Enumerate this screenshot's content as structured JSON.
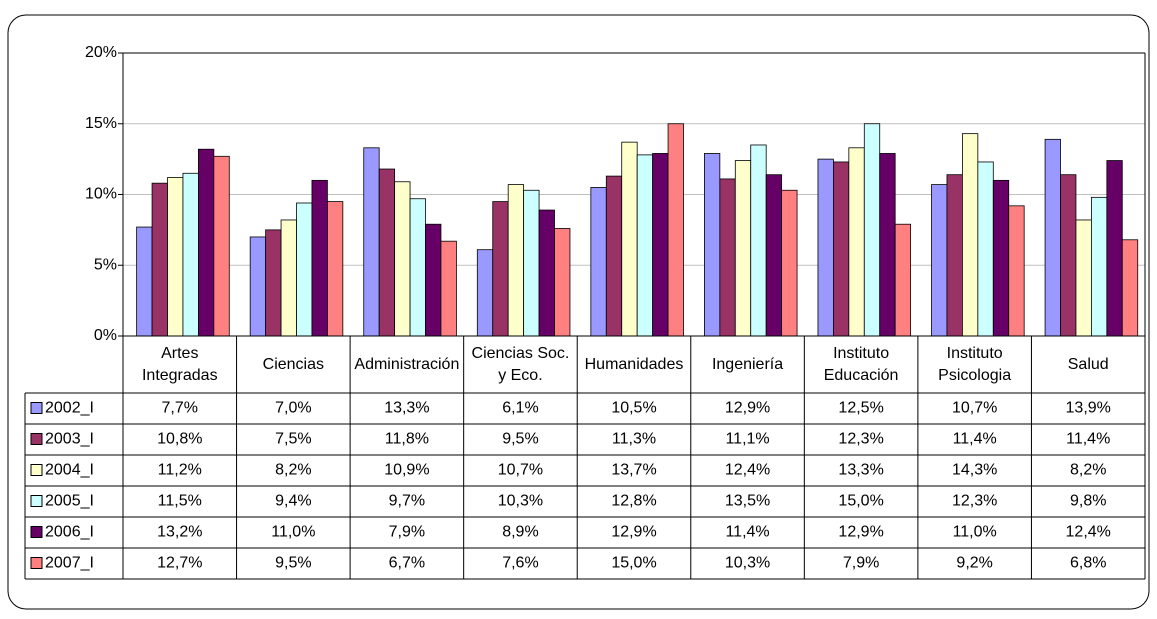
{
  "chart_data": {
    "type": "bar",
    "categories": [
      "Artes Integradas",
      "Ciencias",
      "Administración",
      "Ciencias Soc. y Eco.",
      "Humanidades",
      "Ingeniería",
      "Instituto Educación",
      "Instituto Psicologia",
      "Salud"
    ],
    "series": [
      {
        "name": "2002_I",
        "color": "#9999ff",
        "values": [
          7.7,
          7.0,
          13.3,
          6.1,
          10.5,
          12.9,
          12.5,
          10.7,
          13.9
        ],
        "value_labels": [
          "7,7%",
          "7,0%",
          "13,3%",
          "6,1%",
          "10,5%",
          "12,9%",
          "12,5%",
          "10,7%",
          "13,9%"
        ]
      },
      {
        "name": "2003_I",
        "color": "#993366",
        "values": [
          10.8,
          7.5,
          11.8,
          9.5,
          11.3,
          11.1,
          12.3,
          11.4,
          11.4
        ],
        "value_labels": [
          "10,8%",
          "7,5%",
          "11,8%",
          "9,5%",
          "11,3%",
          "11,1%",
          "12,3%",
          "11,4%",
          "11,4%"
        ]
      },
      {
        "name": "2004_I",
        "color": "#ffffcc",
        "values": [
          11.2,
          8.2,
          10.9,
          10.7,
          13.7,
          12.4,
          13.3,
          14.3,
          8.2
        ],
        "value_labels": [
          "11,2%",
          "8,2%",
          "10,9%",
          "10,7%",
          "13,7%",
          "12,4%",
          "13,3%",
          "14,3%",
          "8,2%"
        ]
      },
      {
        "name": "2005_I",
        "color": "#ccffff",
        "values": [
          11.5,
          9.4,
          9.7,
          10.3,
          12.8,
          13.5,
          15.0,
          12.3,
          9.8
        ],
        "value_labels": [
          "11,5%",
          "9,4%",
          "9,7%",
          "10,3%",
          "12,8%",
          "13,5%",
          "15,0%",
          "12,3%",
          "9,8%"
        ]
      },
      {
        "name": "2006_I",
        "color": "#660066",
        "values": [
          13.2,
          11.0,
          7.9,
          8.9,
          12.9,
          11.4,
          12.9,
          11.0,
          12.4
        ],
        "value_labels": [
          "13,2%",
          "11,0%",
          "7,9%",
          "8,9%",
          "12,9%",
          "11,4%",
          "12,9%",
          "11,0%",
          "12,4%"
        ]
      },
      {
        "name": "2007_I",
        "color": "#ff8080",
        "values": [
          12.7,
          9.5,
          6.7,
          7.6,
          15.0,
          10.3,
          7.9,
          9.2,
          6.8
        ],
        "value_labels": [
          "12,7%",
          "9,5%",
          "6,7%",
          "7,6%",
          "15,0%",
          "10,3%",
          "7,9%",
          "9,2%",
          "6,8%"
        ]
      }
    ],
    "ylim": [
      0,
      20
    ],
    "yticks": [
      {
        "value": 0,
        "label": "0%"
      },
      {
        "value": 5,
        "label": "5%"
      },
      {
        "value": 10,
        "label": "10%"
      },
      {
        "value": 15,
        "label": "15%"
      },
      {
        "value": 20,
        "label": "20%"
      }
    ],
    "grid": true
  }
}
